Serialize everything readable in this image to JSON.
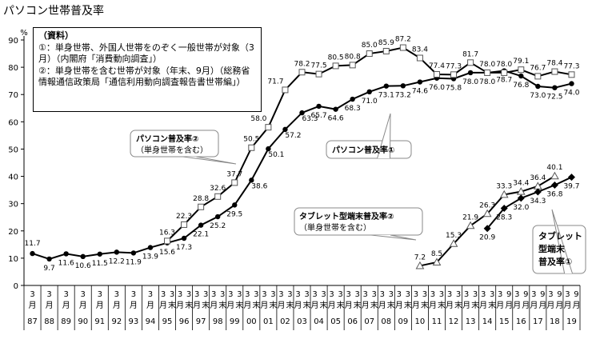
{
  "chart_title": "パソコン世帯普及率",
  "source_note": {
    "heading": "（資料）",
    "line1": "①：単身世帯、外国人世帯をのぞく一般世帯が対象（3月）（内閣府「消費動向調査」）",
    "line2": "②：単身世帯を含む世帯が対象（年末、9月）（総務省情報通信政策局「通信利用動向調査報告書世帯編」）"
  },
  "chart_data": {
    "type": "line",
    "title": "パソコン世帯普及率",
    "ylabel": "%",
    "ylim": [
      0,
      90
    ],
    "yticks": [
      0,
      10,
      20,
      30,
      40,
      50,
      60,
      70,
      80,
      90
    ],
    "grid": false,
    "categories": [
      [
        "3",
        "月",
        "87"
      ],
      [
        "3",
        "月",
        "88"
      ],
      [
        "3",
        "月",
        "89"
      ],
      [
        "3",
        "月",
        "90"
      ],
      [
        "3",
        "月",
        "91"
      ],
      [
        "3",
        "月",
        "92"
      ],
      [
        "3",
        "月",
        "93"
      ],
      [
        "3",
        "月",
        "94"
      ],
      [
        "3",
        "月",
        "95"
      ],
      [
        "3",
        "月",
        "96"
      ],
      [
        "3",
        "月",
        "97"
      ],
      [
        "3",
        "月",
        "98"
      ],
      [
        "3",
        "月",
        "99"
      ],
      [
        "3",
        "月",
        "00"
      ],
      [
        "3",
        "月",
        "01"
      ],
      [
        "3",
        "月",
        "02"
      ],
      [
        "3",
        "月",
        "03"
      ],
      [
        "3",
        "月",
        "04"
      ],
      [
        "3",
        "月",
        "05"
      ],
      [
        "3",
        "月",
        "06"
      ],
      [
        "3",
        "月",
        "07"
      ],
      [
        "3",
        "月",
        "08"
      ],
      [
        "3",
        "月",
        "09"
      ],
      [
        "3",
        "月",
        "10"
      ],
      [
        "3",
        "月",
        "11"
      ],
      [
        "3",
        "月",
        "12"
      ],
      [
        "3",
        "月",
        "13"
      ],
      [
        "3",
        "月",
        "14"
      ],
      [
        "3",
        "月",
        "15"
      ],
      [
        "3",
        "月",
        "16"
      ],
      [
        "3",
        "月",
        "17"
      ],
      [
        "3",
        "月",
        "18"
      ],
      [
        "3",
        "月",
        "19"
      ]
    ],
    "month_marks": [
      "末",
      "9"
    ],
    "series": [
      {
        "name": "パソコン普及率①",
        "marker": "circle",
        "points": [
          [
            "87",
            11.7
          ],
          [
            "88",
            9.7
          ],
          [
            "89",
            11.6
          ],
          [
            "90",
            10.6
          ],
          [
            "91",
            11.5
          ],
          [
            "92",
            12.2
          ],
          [
            "93",
            11.9
          ],
          [
            "94",
            13.9
          ],
          [
            "95",
            15.6
          ],
          [
            "96",
            17.3
          ],
          [
            "97",
            22.1
          ],
          [
            "98",
            25.2
          ],
          [
            "99",
            29.5
          ],
          [
            "00",
            38.6
          ],
          [
            "01",
            50.1
          ],
          [
            "02",
            57.2
          ],
          [
            "03",
            63.3
          ],
          [
            "04",
            65.7
          ],
          [
            "05",
            64.6
          ],
          [
            "06",
            68.3
          ],
          [
            "07",
            71.0
          ],
          [
            "08",
            73.1
          ],
          [
            "09",
            73.2
          ],
          [
            "10",
            74.6
          ],
          [
            "11",
            76.0
          ],
          [
            "12",
            75.8
          ],
          [
            "13",
            78.0
          ],
          [
            "14",
            78.0
          ],
          [
            "15",
            78.7
          ],
          [
            "16",
            76.8
          ],
          [
            "17",
            73.0
          ],
          [
            "18",
            72.5
          ],
          [
            "19",
            74.0
          ]
        ],
        "labels": [
          "11.7",
          "9.7",
          "11.6",
          "10.6",
          "11.5",
          "12.2",
          "11.9",
          "13.9",
          "15.6",
          "17.3",
          "22.1",
          "25.2",
          "29.5",
          "38.6",
          "50.1",
          "57.2",
          "63.3",
          "65.7",
          "64.6",
          "68.3",
          "71.0",
          "73.1",
          "73.2",
          "74.6",
          "76.0",
          "75.8",
          "78.0",
          "78.0",
          "78.7",
          "76.8",
          "73.0",
          "72.5",
          "74.0"
        ]
      },
      {
        "name": "パソコン普及率②",
        "note": "（単身世帯を含む）",
        "marker": "square",
        "points": [
          [
            "95",
            16.3
          ],
          [
            "96",
            22.3
          ],
          [
            "97",
            28.8
          ],
          [
            "98",
            32.6
          ],
          [
            "99",
            37.7
          ],
          [
            "00",
            50.5
          ],
          [
            "01",
            58.0
          ],
          [
            "02",
            71.7
          ],
          [
            "03",
            78.2
          ],
          [
            "04",
            77.5
          ],
          [
            "05",
            80.5
          ],
          [
            "06",
            80.8
          ],
          [
            "07",
            85.0
          ],
          [
            "08",
            85.9
          ],
          [
            "09",
            87.2
          ],
          [
            "10",
            83.4
          ],
          [
            "11",
            77.4
          ],
          [
            "12",
            77.3
          ],
          [
            "13",
            81.7
          ],
          [
            "14",
            78.0
          ],
          [
            "15",
            78.0
          ],
          [
            "16",
            79.1
          ],
          [
            "17",
            76.7
          ],
          [
            "18",
            78.4
          ],
          [
            "19",
            77.3
          ]
        ],
        "labels": [
          "16.3",
          "22.3",
          "28.8",
          "32.6",
          "37.7",
          "50.5",
          "58.0",
          "71.7",
          "78.2",
          "77.5",
          "80.5",
          "80.8",
          "85.0",
          "85.9",
          "87.2",
          "83.4",
          "77.4",
          "77.3",
          "81.7",
          "78.0",
          "78.0",
          "79.1",
          "76.7",
          "78.4",
          "77.3"
        ]
      },
      {
        "name": "タブレット型端末普及率②",
        "note": "（単身世帯を含む）",
        "marker": "triangle",
        "points": [
          [
            "10",
            7.2
          ],
          [
            "11",
            8.5
          ],
          [
            "12",
            15.3
          ],
          [
            "13",
            21.9
          ],
          [
            "14",
            26.3
          ],
          [
            "15",
            33.3
          ],
          [
            "16",
            34.4
          ],
          [
            "17",
            36.4
          ],
          [
            "18",
            40.1
          ]
        ],
        "labels": [
          "7.2",
          "8.5",
          "15.3",
          "21.9",
          "26.3",
          "33.3",
          "34.4",
          "36.4",
          "40.1"
        ]
      },
      {
        "name": "タブレット型端末普及率①",
        "marker": "diamond",
        "points": [
          [
            "14",
            20.9
          ],
          [
            "15",
            28.3
          ],
          [
            "16",
            32.0
          ],
          [
            "17",
            34.3
          ],
          [
            "18",
            36.8
          ],
          [
            "19",
            39.7
          ]
        ],
        "labels": [
          "20.9",
          "28.3",
          "32.0",
          "34.3",
          "36.8",
          "39.7"
        ]
      }
    ],
    "annotations": {
      "pc2_title": "パソコン普及率②",
      "pc2_note": "（単身世帯を含む）",
      "pc1_title": "パソコン普及率①",
      "tab2_title": "タブレット型端末普及率②",
      "tab2_note": "（単身世帯を含む）",
      "tab1_title": [
        "タブレット",
        "型端末",
        "普及率①"
      ]
    }
  }
}
